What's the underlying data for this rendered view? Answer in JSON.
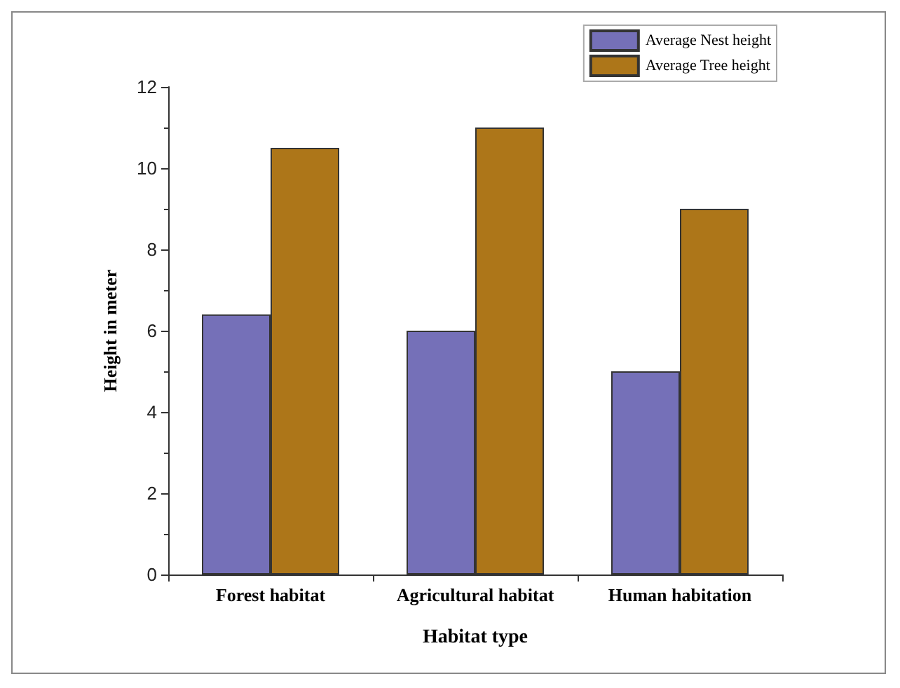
{
  "chart_data": {
    "type": "bar",
    "xlabel": "Habitat type",
    "ylabel": "Height in meter",
    "categories": [
      "Forest habitat",
      "Agricultural habitat",
      "Human habitation"
    ],
    "series": [
      {
        "name": "Average Nest height",
        "color": "#7570b8",
        "values": [
          6.4,
          6,
          5
        ]
      },
      {
        "name": "Average Tree height",
        "color": "#ad7619",
        "values": [
          10.5,
          11,
          9
        ]
      }
    ],
    "ylim": [
      0,
      12
    ],
    "yticks": [
      0,
      2,
      4,
      6,
      8,
      10,
      12
    ],
    "grid": false,
    "legend": "top right"
  }
}
